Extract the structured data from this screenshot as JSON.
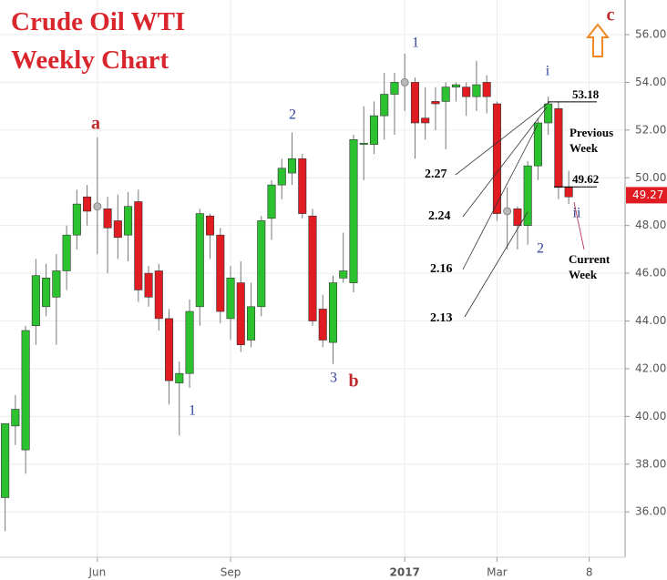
{
  "chart_data": {
    "type": "candlestick",
    "title": "Crude Oil WTI",
    "subtitle": "Weekly Chart",
    "x": [
      0,
      1,
      2,
      3,
      4,
      5,
      6,
      7,
      8,
      9,
      10,
      11,
      12,
      13,
      14,
      15,
      16,
      17,
      18,
      19,
      20,
      21,
      22,
      23,
      24,
      25,
      26,
      27,
      28,
      29,
      30,
      31,
      32,
      33,
      34,
      35,
      36,
      37,
      38,
      39,
      40,
      41,
      42,
      43,
      44,
      45,
      46,
      47,
      48,
      49,
      50,
      51,
      52,
      53,
      54,
      55
    ],
    "open": [
      36.6,
      39.6,
      38.6,
      43.8,
      44.6,
      45.0,
      46.1,
      47.6,
      49.2,
      48.8,
      48.7,
      48.2,
      47.6,
      49.0,
      46.0,
      46.1,
      44.1,
      41.4,
      41.8,
      44.6,
      48.4,
      47.6,
      44.1,
      45.6,
      43.2,
      44.6,
      48.3,
      49.7,
      50.2,
      50.8,
      48.4,
      44.5,
      43.1,
      45.8,
      45.6,
      51.4,
      51.4,
      52.6,
      53.5,
      54.0,
      54.0,
      52.5,
      53.2,
      53.2,
      53.8,
      53.8,
      53.4,
      54.0,
      53.1,
      48.6,
      48.7,
      48.0,
      50.5,
      52.3,
      52.9,
      49.6
    ],
    "high": [
      39.7,
      40.9,
      43.8,
      46.6,
      46.4,
      46.8,
      48.0,
      49.5,
      49.7,
      51.7,
      49.2,
      49.3,
      49.4,
      49.5,
      46.3,
      46.4,
      44.5,
      42.3,
      44.9,
      48.7,
      48.5,
      47.9,
      46.3,
      46.5,
      45.6,
      48.4,
      49.9,
      50.8,
      51.9,
      51.0,
      48.7,
      45.1,
      45.9,
      47.7,
      51.8,
      53.0,
      53.2,
      54.4,
      54.4,
      55.2,
      54.2,
      53.8,
      53.8,
      54.0,
      54.0,
      54.0,
      54.9,
      54.3,
      53.2,
      49.6,
      48.8,
      50.7,
      52.5,
      53.4,
      53.2,
      50.3
    ],
    "low": [
      35.2,
      38.8,
      37.6,
      43.0,
      44.2,
      43.0,
      45.3,
      47.0,
      48.0,
      46.8,
      46.0,
      46.6,
      46.5,
      44.8,
      44.6,
      43.6,
      40.5,
      39.2,
      41.2,
      43.8,
      46.6,
      43.9,
      43.2,
      42.7,
      42.9,
      44.2,
      47.4,
      49.1,
      49.7,
      48.3,
      43.8,
      42.9,
      42.2,
      45.6,
      45.2,
      49.9,
      51.0,
      51.6,
      51.8,
      52.8,
      50.8,
      51.6,
      52.0,
      51.2,
      53.2,
      52.6,
      52.8,
      52.7,
      48.2,
      47.0,
      47.0,
      47.2,
      49.9,
      51.8,
      49.1,
      48.9
    ],
    "close": [
      39.7,
      40.3,
      43.6,
      45.9,
      45.8,
      46.1,
      47.6,
      48.9,
      48.6,
      48.8,
      47.9,
      47.5,
      48.8,
      45.3,
      45.0,
      44.1,
      41.5,
      41.8,
      44.4,
      48.5,
      47.6,
      44.4,
      45.8,
      43.0,
      44.6,
      48.2,
      49.7,
      50.4,
      50.8,
      48.5,
      44.0,
      43.2,
      45.6,
      46.1,
      51.6,
      51.45,
      52.6,
      53.5,
      54.0,
      54.0,
      52.3,
      52.3,
      53.1,
      53.8,
      53.9,
      53.4,
      53.9,
      53.4,
      48.5,
      48.6,
      48.0,
      50.5,
      52.3,
      53.1,
      49.6,
      49.2
    ],
    "up_color": "#2bc12f",
    "down_color": "#e01b22",
    "flat_color": "#b9b9b9",
    "xlim": [
      -0.5,
      60.5
    ],
    "ylim": [
      34.1,
      57.45
    ],
    "xticks": [
      {
        "value": 9,
        "label": "Jun"
      },
      {
        "value": 22,
        "label": "Sep"
      },
      {
        "value": 39,
        "label": "2017"
      },
      {
        "value": 48,
        "label": "Mar"
      },
      {
        "value": 57,
        "label": "8"
      }
    ],
    "yticks": [
      {
        "value": 36,
        "label": "36.00"
      },
      {
        "value": 38,
        "label": "38.00"
      },
      {
        "value": 40,
        "label": "40.00"
      },
      {
        "value": 42,
        "label": "42.00"
      },
      {
        "value": 44,
        "label": "44.00"
      },
      {
        "value": 46,
        "label": "46.00"
      },
      {
        "value": 48,
        "label": "48.00"
      },
      {
        "value": 50,
        "label": "50.00"
      },
      {
        "value": 52,
        "label": "52.00"
      },
      {
        "value": 54,
        "label": "54.00"
      },
      {
        "value": 56,
        "label": "56.00"
      }
    ],
    "grid": true,
    "last_price": 49.27,
    "levels": [
      53.18,
      49.62
    ],
    "ratios": [
      2.27,
      2.24,
      2.16,
      2.13
    ],
    "wave_labels": [
      "a",
      "1",
      "2",
      "3",
      "b",
      "1",
      "i",
      "2",
      "ii",
      "c"
    ],
    "notes": [
      "Previous Week",
      "Current Week"
    ]
  }
}
